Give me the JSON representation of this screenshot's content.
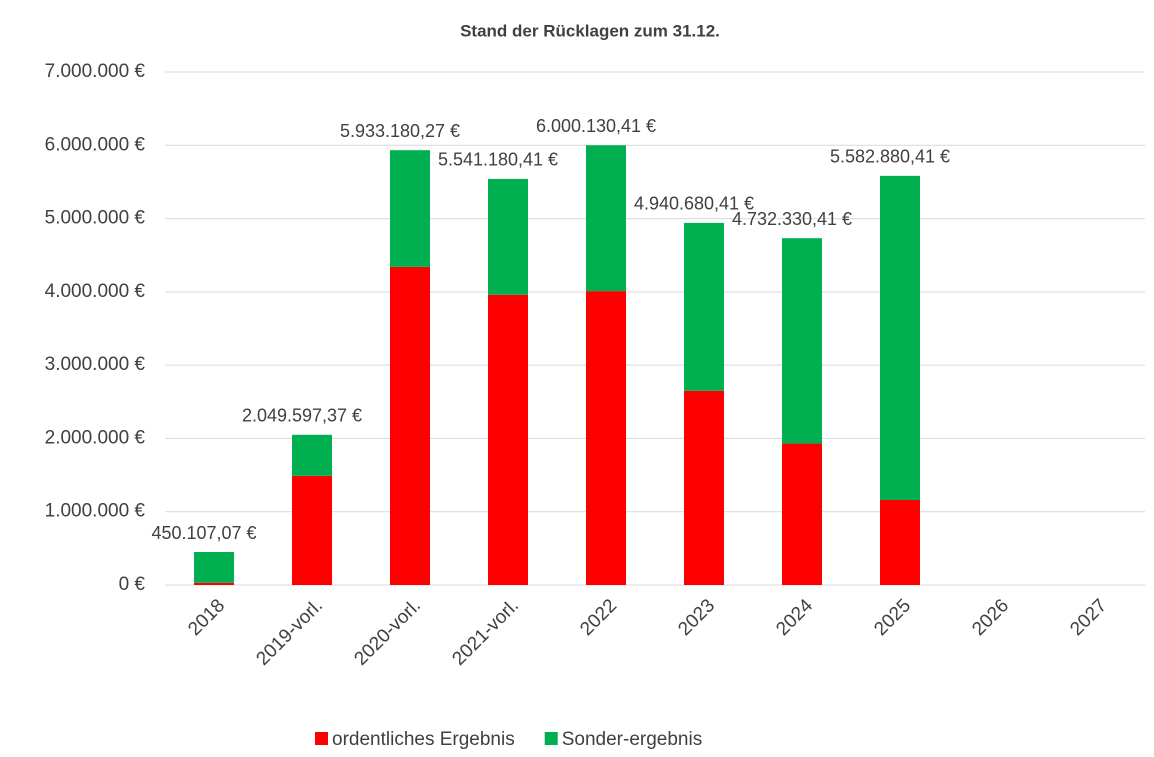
{
  "chart_data": {
    "type": "bar",
    "stacked": true,
    "title": "Stand der Rücklagen zum 31.12.",
    "categories": [
      "2018",
      "2019-vorl.",
      "2020-vorl.",
      "2021-vorl.",
      "2022",
      "2023",
      "2024",
      "2025",
      "2026",
      "2027"
    ],
    "series": [
      {
        "name": "ordentliches Ergebnis",
        "color": "#ff0000",
        "values": [
          30000,
          1490000,
          4340000,
          3960000,
          4010000,
          2650000,
          1930000,
          1160000,
          null,
          null
        ]
      },
      {
        "name": "Sonder-ergebnis",
        "color": "#00b050",
        "values": [
          420107.07,
          559597.37,
          1593180.27,
          1581180.41,
          1990130.41,
          2290680.41,
          2802330.41,
          4422880.41,
          null,
          null
        ]
      }
    ],
    "total_labels": [
      "450.107,07 €",
      "2.049.597,37 €",
      "5.933.180,27 €",
      "5.541.180,41 €",
      "6.000.130,41 €",
      "4.940.680,41 €",
      "4.732.330,41 €",
      "5.582.880,41 €",
      null,
      null
    ],
    "ylim": [
      0,
      7000000
    ],
    "yticks": [
      {
        "value": 0,
        "label": "0 €"
      },
      {
        "value": 1000000,
        "label": "1.000.000 €"
      },
      {
        "value": 2000000,
        "label": "2.000.000 €"
      },
      {
        "value": 3000000,
        "label": "3.000.000 €"
      },
      {
        "value": 4000000,
        "label": "4.000.000 €"
      },
      {
        "value": 5000000,
        "label": "5.000.000 €"
      },
      {
        "value": 6000000,
        "label": "6.000.000 €"
      },
      {
        "value": 7000000,
        "label": "7.000.000 €"
      }
    ],
    "grid": true,
    "legend": "bottom"
  }
}
